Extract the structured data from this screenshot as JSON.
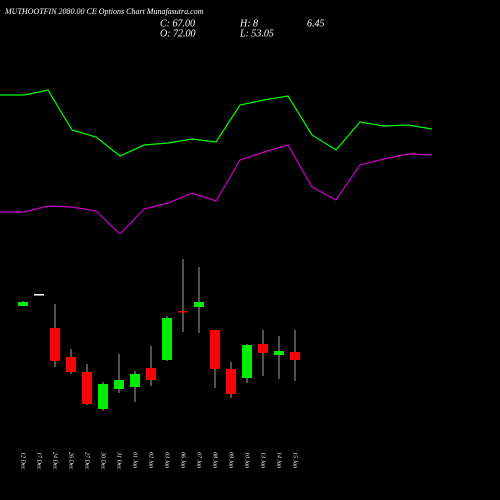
{
  "header": {
    "title": "MUTHOOTFIN 2080.00 CE Options Chart Munafasutra.com",
    "close": "C: 67.00",
    "high": "H: 8",
    "extra": "6.45",
    "open": "O: 72.00",
    "low": "L: 53.05"
  },
  "chart_data": [
    {
      "type": "line",
      "xlim": [
        0,
        18
      ],
      "ylim": [
        260,
        415
      ],
      "x": [
        0,
        1,
        2,
        3,
        4,
        5,
        6,
        7,
        8,
        9,
        10,
        11,
        12,
        13,
        14,
        15,
        16,
        17,
        18
      ],
      "series": [
        {
          "color": "#00ff00",
          "values": [
            405,
            405,
            410,
            370,
            363,
            344,
            355,
            357,
            361,
            358,
            395,
            400,
            404,
            365,
            350,
            378,
            374,
            375,
            371
          ]
        },
        {
          "color": "#cc00cc",
          "values": [
            288,
            288,
            294,
            293,
            289,
            266,
            291,
            297,
            307,
            299,
            340,
            348,
            355,
            313,
            300,
            335,
            341,
            346,
            345
          ]
        }
      ]
    },
    {
      "type": "candlestick",
      "ylim": [
        80,
        250
      ],
      "up_color": "#00ee00",
      "down_color": "#ff0000",
      "flat_color": "#ffffff",
      "categories": [
        "12 Dec",
        "17 Dec",
        "24 Dec",
        "26 Dec",
        "27 Dec",
        "30 Dec",
        "31 Dec",
        "01 Jan",
        "02 Jan",
        "03 Jan",
        "06 Jan",
        "07 Jan",
        "08 Jan",
        "09 Jan",
        "10 Jan",
        "13 Jan",
        "14 Jan",
        "15 Jan"
      ],
      "open": [
        194,
        206,
        172,
        143,
        128,
        91,
        111,
        113,
        132,
        140,
        189,
        193,
        170,
        131,
        122,
        156,
        145,
        148
      ],
      "close": [
        198,
        206,
        139,
        128,
        96,
        116,
        120,
        126,
        120,
        182,
        188,
        198,
        131,
        106,
        155,
        147,
        149,
        140
      ],
      "high": [
        199,
        206,
        196,
        151,
        136,
        118,
        146,
        129,
        154,
        184,
        241,
        233,
        170,
        138,
        156,
        170,
        164,
        170
      ],
      "low": [
        194,
        206,
        133,
        126,
        95,
        89,
        107,
        98,
        114,
        139,
        168,
        167,
        112,
        102,
        117,
        124,
        121,
        119
      ]
    }
  ]
}
